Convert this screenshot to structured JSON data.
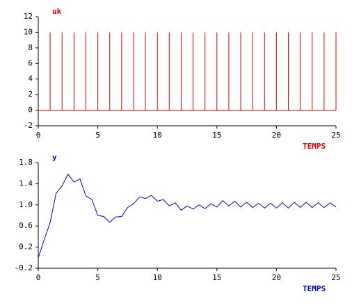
{
  "chart_data": [
    {
      "type": "stem",
      "title": "uk",
      "x_label": "TEMPS",
      "color": "#e00000",
      "x": [
        1,
        2,
        3,
        4,
        5,
        6,
        7,
        8,
        9,
        10,
        11,
        12,
        13,
        14,
        15,
        16,
        17,
        18,
        19,
        20,
        21,
        22,
        23,
        24,
        25
      ],
      "values": [
        10,
        10,
        10,
        10,
        10,
        10,
        10,
        10,
        10,
        10,
        10,
        10,
        10,
        10,
        10,
        10,
        10,
        10,
        10,
        10,
        10,
        10,
        10,
        10,
        10
      ],
      "xlim": [
        0,
        25
      ],
      "xticks": [
        0,
        5,
        10,
        15,
        20,
        25
      ],
      "ylim": [
        -2,
        12
      ],
      "yticks": [
        -2,
        0,
        2,
        4,
        6,
        8,
        10,
        12
      ]
    },
    {
      "type": "line",
      "title": "y",
      "x_label": "TEMPS",
      "color": "#0000c0",
      "x": [
        0,
        0.5,
        1,
        1.5,
        2,
        2.5,
        3,
        3.5,
        4,
        4.5,
        5,
        5.5,
        6,
        6.5,
        7,
        7.5,
        8,
        8.5,
        9,
        9.5,
        10,
        10.5,
        11,
        11.5,
        12,
        12.5,
        13,
        13.5,
        14,
        14.5,
        15,
        15.5,
        16,
        16.5,
        17,
        17.5,
        18,
        18.5,
        19,
        19.5,
        20,
        20.5,
        21,
        21.5,
        22,
        22.5,
        23,
        23.5,
        24,
        24.5,
        25
      ],
      "values": [
        0.0,
        0.34,
        0.67,
        1.22,
        1.36,
        1.58,
        1.43,
        1.49,
        1.17,
        1.1,
        0.8,
        0.78,
        0.67,
        0.77,
        0.78,
        0.95,
        1.02,
        1.15,
        1.12,
        1.18,
        1.07,
        1.1,
        0.98,
        1.04,
        0.9,
        0.98,
        0.92,
        1.0,
        0.93,
        1.02,
        0.96,
        1.08,
        0.98,
        1.07,
        0.96,
        1.05,
        0.95,
        1.03,
        0.94,
        1.03,
        0.94,
        1.04,
        0.94,
        1.05,
        0.95,
        1.05,
        0.95,
        1.04,
        0.95,
        1.04,
        0.96
      ],
      "xlim": [
        0,
        25
      ],
      "xticks": [
        0,
        5,
        10,
        15,
        20,
        25
      ],
      "ylim": [
        -0.2,
        1.8
      ],
      "yticks": [
        -0.2,
        0.2,
        0.6,
        {
          "value": 1.0,
          "label": "1.0"
        },
        1.4,
        1.8
      ]
    }
  ]
}
